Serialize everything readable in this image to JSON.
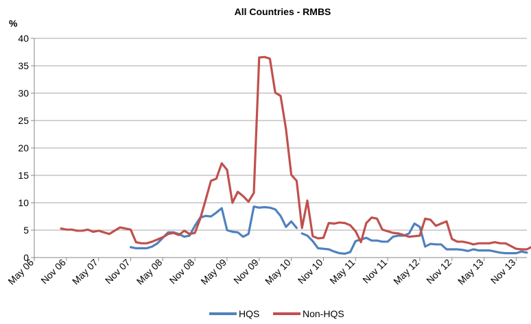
{
  "chart_data": {
    "type": "line",
    "title": "All Countries - RMBS",
    "ylabel": "%",
    "xlabel": "",
    "ylim": [
      0,
      40
    ],
    "yticks": [
      0,
      5,
      10,
      15,
      20,
      25,
      30,
      35,
      40
    ],
    "xlim": [
      "2006-05",
      "2014-01"
    ],
    "xticks": [
      {
        "label": "May 06",
        "date": "2006-05"
      },
      {
        "label": "Nov 06",
        "date": "2006-11"
      },
      {
        "label": "May 07",
        "date": "2007-05"
      },
      {
        "label": "Nov 07",
        "date": "2007-11"
      },
      {
        "label": "May 08",
        "date": "2008-05"
      },
      {
        "label": "Nov 08",
        "date": "2008-11"
      },
      {
        "label": "May 09",
        "date": "2009-05"
      },
      {
        "label": "Nov 09",
        "date": "2009-11"
      },
      {
        "label": "May 10",
        "date": "2010-05"
      },
      {
        "label": "Nov 10",
        "date": "2010-11"
      },
      {
        "label": "May 11",
        "date": "2011-05"
      },
      {
        "label": "Nov 11",
        "date": "2011-11"
      },
      {
        "label": "May 12",
        "date": "2012-05"
      },
      {
        "label": "Nov 12",
        "date": "2012-11"
      },
      {
        "label": "May 13",
        "date": "2013-05"
      },
      {
        "label": "Nov 13",
        "date": "2013-11"
      }
    ],
    "grid": "horizontal",
    "legend": "bottom",
    "series": [
      {
        "name": "HQS",
        "color": "#4F81BD",
        "segments": [
          [
            [
              "2007-11",
              1.9
            ],
            [
              "2007-12",
              1.7
            ],
            [
              "2008-01",
              1.7
            ],
            [
              "2008-02",
              1.7
            ],
            [
              "2008-03",
              2.0
            ],
            [
              "2008-04",
              2.6
            ],
            [
              "2008-05",
              3.6
            ],
            [
              "2008-06",
              4.6
            ],
            [
              "2008-07",
              4.6
            ],
            [
              "2008-08",
              4.3
            ],
            [
              "2008-09",
              3.8
            ],
            [
              "2008-10",
              4.0
            ],
            [
              "2008-11",
              5.8
            ],
            [
              "2008-12",
              7.3
            ],
            [
              "2009-01",
              7.6
            ],
            [
              "2009-02",
              7.5
            ],
            [
              "2009-03",
              8.2
            ],
            [
              "2009-04",
              9.0
            ],
            [
              "2009-05",
              5.0
            ],
            [
              "2009-06",
              4.7
            ],
            [
              "2009-07",
              4.6
            ],
            [
              "2009-08",
              3.8
            ],
            [
              "2009-09",
              4.3
            ],
            [
              "2009-10",
              9.3
            ],
            [
              "2009-11",
              9.1
            ],
            [
              "2009-12",
              9.2
            ],
            [
              "2010-01",
              9.1
            ],
            [
              "2010-02",
              8.8
            ],
            [
              "2010-03",
              7.6
            ],
            [
              "2010-04",
              5.6
            ],
            [
              "2010-05",
              6.6
            ],
            [
              "2010-06",
              5.4
            ]
          ],
          [
            [
              "2010-07",
              4.4
            ],
            [
              "2010-08",
              4.0
            ],
            [
              "2010-09",
              3.0
            ],
            [
              "2010-10",
              1.7
            ],
            [
              "2010-11",
              1.6
            ],
            [
              "2010-12",
              1.5
            ],
            [
              "2011-01",
              1.1
            ],
            [
              "2011-02",
              0.8
            ],
            [
              "2011-03",
              0.7
            ],
            [
              "2011-04",
              1.0
            ],
            [
              "2011-05",
              3.0
            ],
            [
              "2011-06",
              3.3
            ],
            [
              "2011-07",
              3.6
            ],
            [
              "2011-08",
              3.1
            ],
            [
              "2011-09",
              3.1
            ],
            [
              "2011-10",
              2.9
            ],
            [
              "2011-11",
              2.9
            ],
            [
              "2011-12",
              3.8
            ],
            [
              "2012-01",
              4.0
            ],
            [
              "2012-02",
              4.0
            ],
            [
              "2012-03",
              4.4
            ],
            [
              "2012-04",
              6.2
            ],
            [
              "2012-05",
              5.6
            ],
            [
              "2012-06",
              2.0
            ],
            [
              "2012-07",
              2.5
            ],
            [
              "2012-08",
              2.4
            ],
            [
              "2012-09",
              2.4
            ],
            [
              "2012-10",
              1.5
            ],
            [
              "2012-11",
              1.5
            ],
            [
              "2012-12",
              1.5
            ],
            [
              "2013-01",
              1.4
            ],
            [
              "2013-02",
              1.2
            ],
            [
              "2013-03",
              1.5
            ],
            [
              "2013-04",
              1.3
            ],
            [
              "2013-05",
              1.3
            ],
            [
              "2013-06",
              1.3
            ],
            [
              "2013-07",
              1.1
            ],
            [
              "2013-08",
              0.9
            ],
            [
              "2013-09",
              0.8
            ],
            [
              "2013-10",
              0.8
            ],
            [
              "2013-11",
              0.8
            ],
            [
              "2013-12",
              1.1
            ],
            [
              "2014-01",
              0.9
            ]
          ]
        ]
      },
      {
        "name": "Non-HQS",
        "color": "#C0504D",
        "segments": [
          [
            [
              "2006-10",
              5.3
            ],
            [
              "2006-11",
              5.1
            ],
            [
              "2006-12",
              5.1
            ],
            [
              "2007-01",
              4.9
            ],
            [
              "2007-02",
              4.9
            ],
            [
              "2007-03",
              5.1
            ],
            [
              "2007-04",
              4.7
            ],
            [
              "2007-05",
              4.9
            ],
            [
              "2007-06",
              4.6
            ],
            [
              "2007-07",
              4.3
            ],
            [
              "2007-08",
              4.9
            ],
            [
              "2007-09",
              5.5
            ],
            [
              "2007-10",
              5.3
            ],
            [
              "2007-11",
              5.1
            ],
            [
              "2007-12",
              2.8
            ],
            [
              "2008-01",
              2.6
            ],
            [
              "2008-02",
              2.6
            ],
            [
              "2008-03",
              2.9
            ],
            [
              "2008-04",
              3.3
            ],
            [
              "2008-05",
              3.7
            ],
            [
              "2008-06",
              4.3
            ],
            [
              "2008-07",
              4.5
            ],
            [
              "2008-08",
              4.1
            ],
            [
              "2008-09",
              4.9
            ],
            [
              "2008-10",
              4.3
            ],
            [
              "2008-11",
              4.5
            ],
            [
              "2008-12",
              7.1
            ],
            [
              "2009-01",
              10.5
            ],
            [
              "2009-02",
              14.0
            ],
            [
              "2009-03",
              14.4
            ],
            [
              "2009-04",
              17.2
            ],
            [
              "2009-05",
              16.0
            ],
            [
              "2009-06",
              10.0
            ],
            [
              "2009-07",
              12.0
            ],
            [
              "2009-08",
              11.2
            ],
            [
              "2009-09",
              10.2
            ],
            [
              "2009-10",
              11.8
            ],
            [
              "2009-11",
              36.5
            ],
            [
              "2009-12",
              36.6
            ],
            [
              "2010-01",
              36.3
            ],
            [
              "2010-02",
              30.1
            ],
            [
              "2010-03",
              29.5
            ],
            [
              "2010-04",
              23.5
            ],
            [
              "2010-05",
              15.1
            ],
            [
              "2010-06",
              14.0
            ],
            [
              "2010-07",
              5.4
            ],
            [
              "2010-08",
              10.4
            ],
            [
              "2010-09",
              3.9
            ],
            [
              "2010-10",
              3.5
            ],
            [
              "2010-11",
              3.6
            ],
            [
              "2010-12",
              6.3
            ],
            [
              "2011-01",
              6.2
            ],
            [
              "2011-02",
              6.4
            ],
            [
              "2011-03",
              6.3
            ],
            [
              "2011-04",
              5.9
            ],
            [
              "2011-05",
              4.8
            ],
            [
              "2011-06",
              2.8
            ],
            [
              "2011-07",
              6.3
            ],
            [
              "2011-08",
              7.3
            ],
            [
              "2011-09",
              7.1
            ],
            [
              "2011-10",
              5.1
            ],
            [
              "2011-11",
              4.8
            ],
            [
              "2011-12",
              4.5
            ],
            [
              "2012-01",
              4.4
            ],
            [
              "2012-02",
              4.1
            ],
            [
              "2012-03",
              3.8
            ],
            [
              "2012-04",
              3.9
            ],
            [
              "2012-05",
              4.0
            ],
            [
              "2012-06",
              7.1
            ],
            [
              "2012-07",
              6.9
            ],
            [
              "2012-08",
              5.8
            ],
            [
              "2012-09",
              6.2
            ],
            [
              "2012-10",
              6.6
            ],
            [
              "2012-11",
              3.4
            ],
            [
              "2012-12",
              2.9
            ],
            [
              "2013-01",
              2.9
            ],
            [
              "2013-02",
              2.7
            ],
            [
              "2013-03",
              2.4
            ],
            [
              "2013-04",
              2.6
            ],
            [
              "2013-05",
              2.6
            ],
            [
              "2013-06",
              2.6
            ],
            [
              "2013-07",
              2.8
            ],
            [
              "2013-08",
              2.6
            ],
            [
              "2013-09",
              2.6
            ],
            [
              "2013-10",
              2.1
            ],
            [
              "2013-11",
              1.6
            ],
            [
              "2013-12",
              1.5
            ],
            [
              "2014-01",
              1.5
            ],
            [
              "2014-02",
              2.0
            ],
            [
              "2014-03",
              2.0
            ]
          ]
        ]
      }
    ]
  }
}
